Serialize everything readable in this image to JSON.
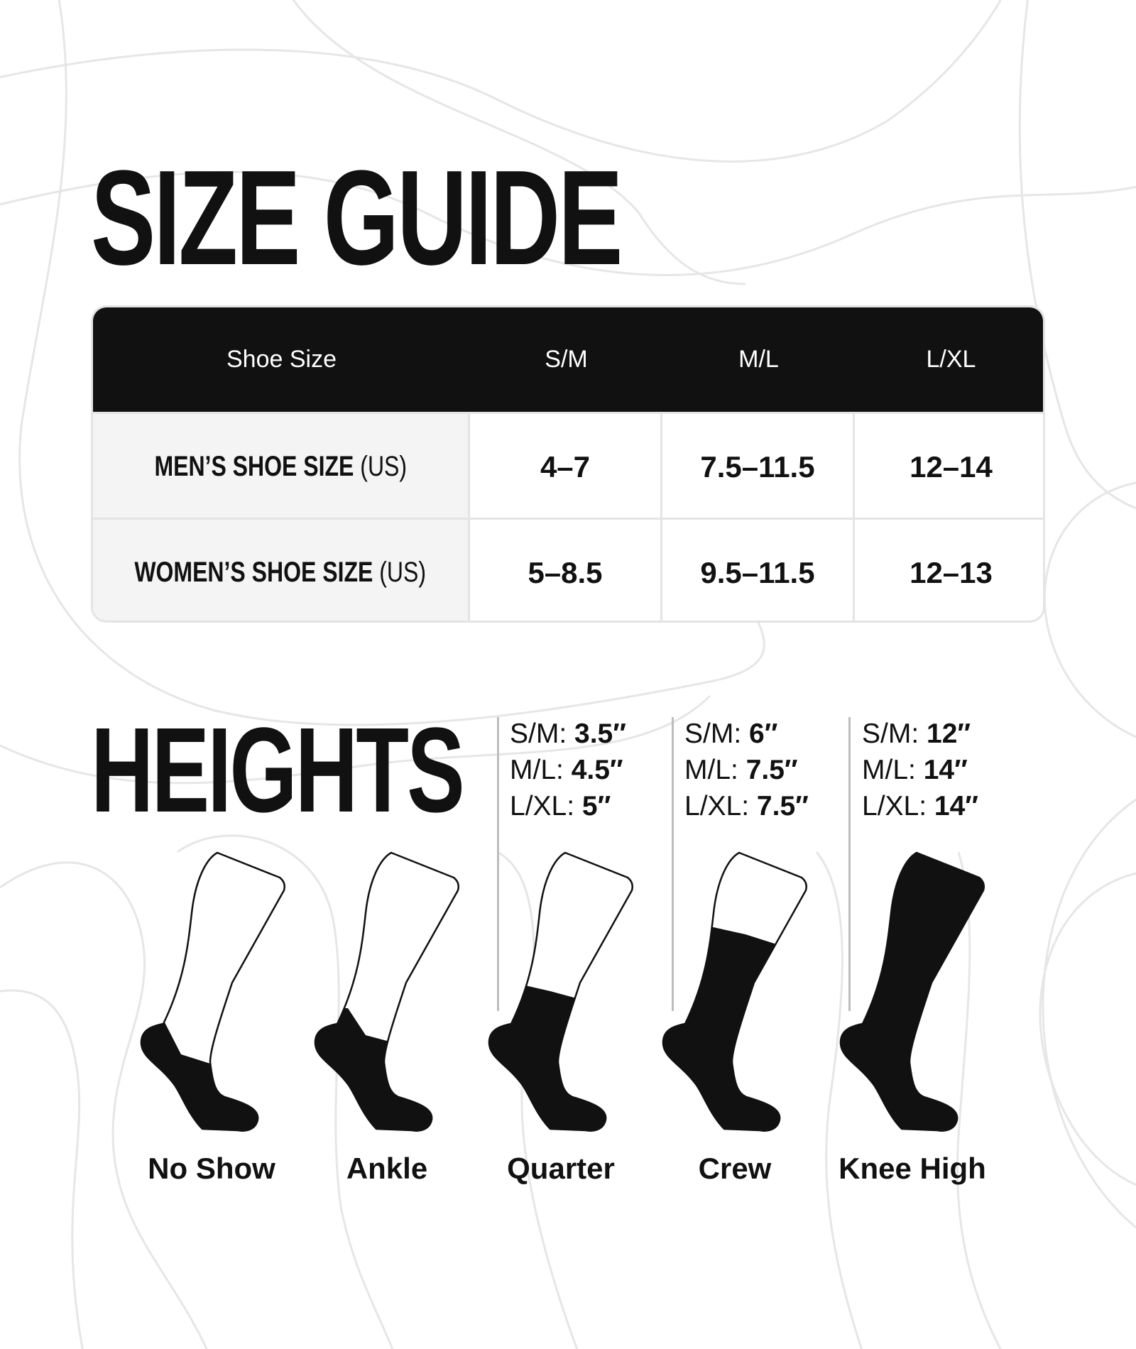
{
  "title": "SIZE GUIDE",
  "table": {
    "headers": [
      "Shoe Size",
      "S/M",
      "M/L",
      "L/XL"
    ],
    "rows": [
      {
        "label": "MEN’S SHOE SIZE",
        "unit": "(US)",
        "values": [
          "4–7",
          "7.5–11.5",
          "12–14"
        ]
      },
      {
        "label": "WOMEN’S SHOE SIZE",
        "unit": "(US)",
        "values": [
          "5–8.5",
          "9.5–11.5",
          "12–13"
        ]
      }
    ]
  },
  "heights_title": "HEIGHTS",
  "heights": [
    {
      "name": "Quarter",
      "lines": [
        {
          "size": "S/M:",
          "value": "3.5″"
        },
        {
          "size": "M/L:",
          "value": "4.5″"
        },
        {
          "size": "L/XL:",
          "value": "5″"
        }
      ]
    },
    {
      "name": "Crew",
      "lines": [
        {
          "size": "S/M:",
          "value": "6″"
        },
        {
          "size": "M/L:",
          "value": "7.5″"
        },
        {
          "size": "L/XL:",
          "value": "7.5″"
        }
      ]
    },
    {
      "name": "Knee High",
      "lines": [
        {
          "size": "S/M:",
          "value": "12″"
        },
        {
          "size": "M/L:",
          "value": "14″"
        },
        {
          "size": "L/XL:",
          "value": "14″"
        }
      ]
    }
  ],
  "socks": [
    "No Show",
    "Ankle",
    "Quarter",
    "Crew",
    "Knee High"
  ],
  "colors": {
    "ink": "#111111",
    "header_bg": "#111111",
    "row_label_bg": "#f4f4f4",
    "contour": "#e6e6e6"
  }
}
